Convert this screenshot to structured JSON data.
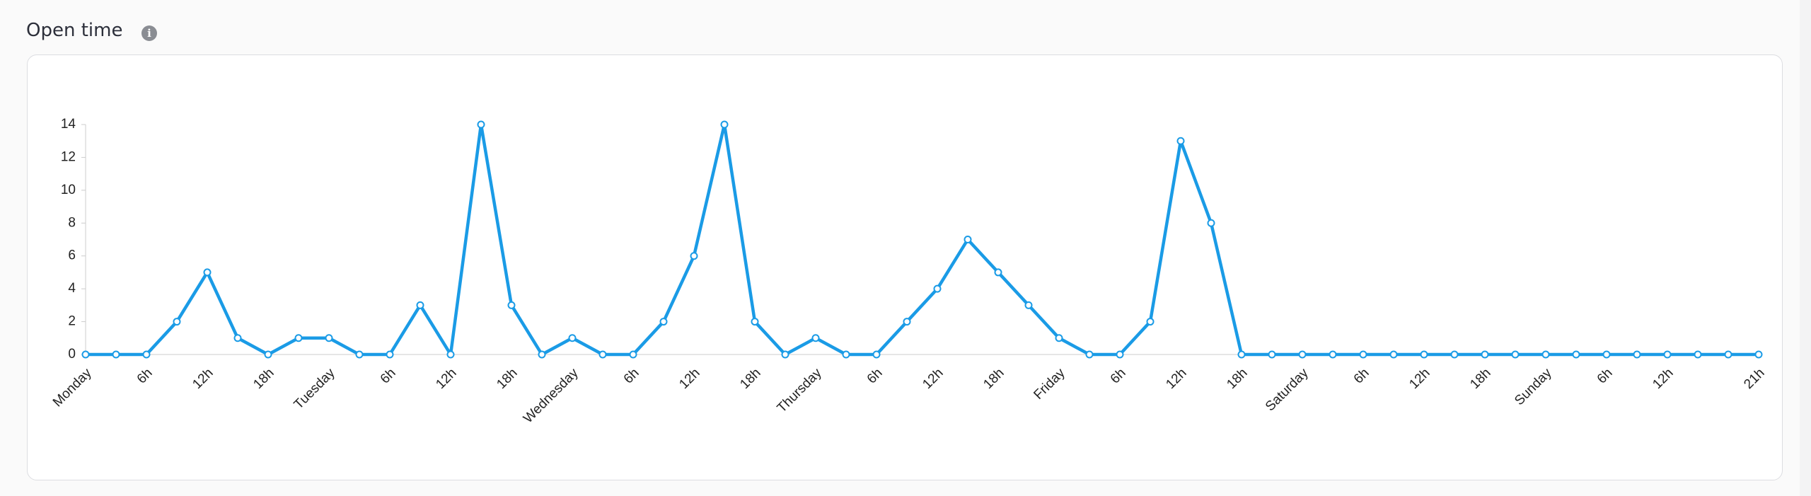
{
  "chart_data": {
    "type": "line",
    "title": "Open time",
    "categories": [
      "Monday",
      null,
      "6h",
      null,
      "12h",
      null,
      "18h",
      null,
      "Tuesday",
      null,
      "6h",
      null,
      "12h",
      null,
      "18h",
      null,
      "Wednesday",
      null,
      "6h",
      null,
      "12h",
      null,
      "18h",
      null,
      "Thursday",
      null,
      "6h",
      null,
      "12h",
      null,
      "18h",
      null,
      "Friday",
      null,
      "6h",
      null,
      "12h",
      null,
      "18h",
      null,
      "Saturday",
      null,
      "6h",
      null,
      "12h",
      null,
      "18h",
      null,
      "Sunday",
      null,
      "6h",
      null,
      "12h",
      null,
      null,
      "21h"
    ],
    "series": [
      {
        "color": "#1a9be6",
        "values": [
          0,
          0,
          0,
          2,
          5,
          1,
          0,
          1,
          1,
          0,
          0,
          3,
          0,
          14,
          3,
          0,
          1,
          0,
          0,
          2,
          6,
          14,
          2,
          0,
          1,
          0,
          0,
          2,
          4,
          7,
          5,
          3,
          1,
          0,
          0,
          2,
          13,
          8,
          0,
          0,
          0,
          0,
          0,
          0,
          0,
          0,
          0,
          0,
          0,
          0,
          0,
          0,
          0,
          0,
          0,
          0
        ]
      }
    ],
    "ylim": [
      0,
      14
    ],
    "yticks": [
      0,
      2,
      4,
      6,
      8,
      10,
      12,
      14
    ],
    "grid": false
  }
}
